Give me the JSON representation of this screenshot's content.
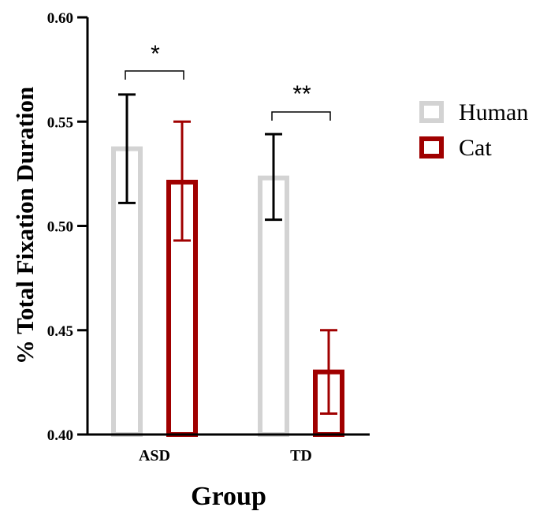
{
  "chart_data": {
    "type": "bar",
    "title": "",
    "xlabel": "Group",
    "ylabel": "% Total Fixation Duration",
    "categories": [
      "ASD",
      "TD"
    ],
    "ylim": [
      0.4,
      0.6
    ],
    "yticks": [
      "0.40",
      "0.45",
      "0.50",
      "0.55",
      "0.60"
    ],
    "grid": false,
    "legend_position": "right",
    "series": [
      {
        "name": "Human",
        "color": "#d3d3d3",
        "errorbar_color": "#000000",
        "values": [
          0.537,
          0.523
        ],
        "error_low": [
          0.511,
          0.503
        ],
        "error_high": [
          0.563,
          0.544
        ]
      },
      {
        "name": "Cat",
        "color": "#a00000",
        "errorbar_color": "#a00000",
        "values": [
          0.521,
          0.43
        ],
        "error_low": [
          0.493,
          0.41
        ],
        "error_high": [
          0.55,
          0.45
        ]
      }
    ],
    "annotations": [
      {
        "category": "ASD",
        "label": "*"
      },
      {
        "category": "TD",
        "label": "**"
      }
    ]
  }
}
